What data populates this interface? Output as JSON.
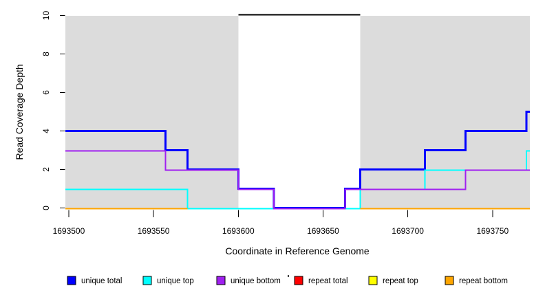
{
  "chart_data": {
    "type": "line",
    "variant": "step",
    "title": "",
    "xlabel": "Coordinate in Reference Genome",
    "ylabel": "Read Coverage Depth",
    "xlim": [
      1693498,
      1693772
    ],
    "ylim": [
      0,
      10
    ],
    "x_ticks": [
      1693500,
      1693550,
      1693600,
      1693650,
      1693700,
      1693750
    ],
    "y_ticks": [
      0,
      2,
      4,
      6,
      8,
      10
    ],
    "grid": false,
    "legend_position": "bottom",
    "band_color": "#dcdcdc",
    "background_bands": [
      {
        "from": 1693498,
        "to": 1693600
      },
      {
        "from": 1693672,
        "to": 1693772
      }
    ],
    "unique_region_marker": {
      "from": 1693600,
      "to": 1693672,
      "y": 10,
      "color": "#000000"
    },
    "series": [
      {
        "name": "unique total",
        "color": "#0000ff",
        "parts": [
          {
            "steps": [
              [
                1693498,
                4
              ],
              [
                1693557,
                3
              ],
              [
                1693570,
                2
              ],
              [
                1693600,
                1
              ],
              [
                1693621,
                0
              ],
              [
                1693663,
                1
              ],
              [
                1693672,
                2
              ],
              [
                1693710,
                3
              ],
              [
                1693734,
                4
              ],
              [
                1693770,
                5
              ]
            ],
            "end": 1693772
          }
        ]
      },
      {
        "name": "unique top",
        "color": "#00ffff",
        "parts": [
          {
            "steps": [
              [
                1693498,
                1
              ],
              [
                1693570,
                0
              ],
              [
                1693672,
                1
              ],
              [
                1693710,
                2
              ],
              [
                1693770,
                3
              ]
            ],
            "end": 1693772
          }
        ]
      },
      {
        "name": "unique bottom",
        "color": "#a020f0",
        "parts": [
          {
            "steps": [
              [
                1693498,
                3
              ],
              [
                1693557,
                2
              ],
              [
                1693600,
                1
              ],
              [
                1693621,
                0
              ],
              [
                1693663,
                1
              ],
              [
                1693734,
                2
              ]
            ],
            "end": 1693772
          }
        ]
      },
      {
        "name": "repeat total",
        "color": "#ff0000",
        "parts": [
          {
            "steps": [
              [
                1693498,
                0
              ]
            ],
            "end": 1693570
          },
          {
            "steps": [
              [
                1693672,
                0
              ]
            ],
            "end": 1693772
          }
        ]
      },
      {
        "name": "repeat top",
        "color": "#ffff00",
        "parts": [
          {
            "steps": [
              [
                1693498,
                0
              ]
            ],
            "end": 1693570
          },
          {
            "steps": [
              [
                1693672,
                0
              ]
            ],
            "end": 1693772
          }
        ]
      },
      {
        "name": "repeat bottom",
        "color": "#ffa500",
        "parts": [
          {
            "steps": [
              [
                1693498,
                0
              ]
            ],
            "end": 1693570
          },
          {
            "steps": [
              [
                1693672,
                0
              ]
            ],
            "end": 1693772
          }
        ]
      }
    ],
    "legend": {
      "items": [
        {
          "label": "unique total",
          "color": "#0000ff"
        },
        {
          "label": "unique top",
          "color": "#00ffff"
        },
        {
          "label": "unique bottom",
          "color": "#a020f0"
        },
        {
          "label": "repeat total",
          "color": "#ff0000"
        },
        {
          "label": "repeat top",
          "color": "#ffff00"
        },
        {
          "label": "repeat bottom",
          "color": "#ffa500"
        }
      ]
    }
  }
}
